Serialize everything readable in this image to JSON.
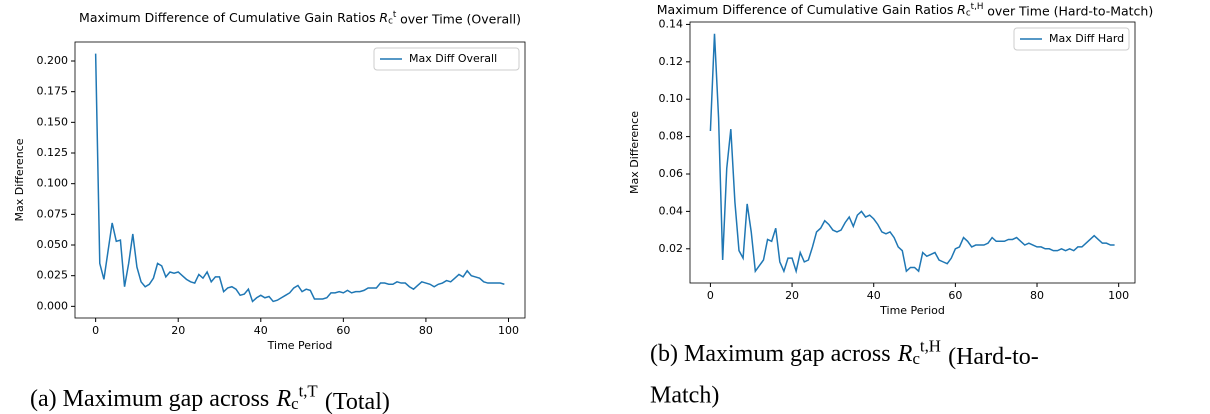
{
  "chart_data": [
    {
      "type": "line",
      "title": {
        "before": "Maximum Difference of Cumulative Gain Ratios",
        "math": {
          "base": "R",
          "sub": "c",
          "sup": "t"
        },
        "after": "over Time (Overall)"
      },
      "xlabel": "Time Period",
      "ylabel": "Max Difference",
      "x": [
        0,
        1,
        2,
        3,
        4,
        5,
        6,
        7,
        8,
        9,
        10,
        11,
        12,
        13,
        14,
        15,
        16,
        17,
        18,
        19,
        20,
        21,
        22,
        23,
        24,
        25,
        26,
        27,
        28,
        29,
        30,
        31,
        32,
        33,
        34,
        35,
        36,
        37,
        38,
        39,
        40,
        41,
        42,
        43,
        44,
        45,
        46,
        47,
        48,
        49,
        50,
        51,
        52,
        53,
        54,
        55,
        56,
        57,
        58,
        59,
        60,
        61,
        62,
        63,
        64,
        65,
        66,
        67,
        68,
        69,
        70,
        71,
        72,
        73,
        74,
        75,
        76,
        77,
        78,
        79,
        80,
        81,
        82,
        83,
        84,
        85,
        86,
        87,
        88,
        89,
        90,
        91,
        92,
        93,
        94,
        95,
        96,
        97,
        98,
        99
      ],
      "series": [
        {
          "name": "Max Diff Overall",
          "color": "#1f77b4",
          "values": [
            0.206,
            0.035,
            0.022,
            0.045,
            0.068,
            0.053,
            0.054,
            0.016,
            0.035,
            0.059,
            0.032,
            0.02,
            0.016,
            0.018,
            0.023,
            0.035,
            0.033,
            0.024,
            0.028,
            0.027,
            0.028,
            0.025,
            0.022,
            0.02,
            0.019,
            0.026,
            0.023,
            0.028,
            0.02,
            0.024,
            0.024,
            0.012,
            0.015,
            0.016,
            0.014,
            0.009,
            0.01,
            0.014,
            0.004,
            0.007,
            0.009,
            0.007,
            0.008,
            0.004,
            0.005,
            0.007,
            0.009,
            0.011,
            0.015,
            0.017,
            0.012,
            0.014,
            0.013,
            0.006,
            0.006,
            0.006,
            0.007,
            0.011,
            0.011,
            0.012,
            0.011,
            0.013,
            0.011,
            0.012,
            0.012,
            0.013,
            0.015,
            0.015,
            0.015,
            0.019,
            0.019,
            0.018,
            0.018,
            0.02,
            0.019,
            0.019,
            0.016,
            0.014,
            0.017,
            0.02,
            0.019,
            0.018,
            0.016,
            0.018,
            0.019,
            0.021,
            0.02,
            0.023,
            0.026,
            0.024,
            0.029,
            0.025,
            0.024,
            0.023,
            0.02,
            0.019,
            0.019,
            0.019,
            0.019,
            0.018
          ]
        }
      ],
      "xlim": [
        -5,
        104
      ],
      "xticks": [
        0,
        20,
        40,
        60,
        80,
        100
      ],
      "ylim": [
        -0.0095,
        0.2155
      ],
      "yticks": [
        {
          "value": 0,
          "label": "0.000"
        },
        {
          "value": 0.025,
          "label": "0.025"
        },
        {
          "value": 0.05,
          "label": "0.050"
        },
        {
          "value": 0.075,
          "label": "0.075"
        },
        {
          "value": 0.1,
          "label": "0.100"
        },
        {
          "value": 0.125,
          "label": "0.125"
        },
        {
          "value": 0.15,
          "label": "0.150"
        },
        {
          "value": 0.175,
          "label": "0.175"
        },
        {
          "value": 0.2,
          "label": "0.200"
        }
      ],
      "legend": "upper right",
      "caption": {
        "before": "(a) Maximum gap across",
        "math": {
          "base": "R",
          "sub": "c",
          "sup": "t,T"
        },
        "after_lines": [
          "(Total)"
        ]
      }
    },
    {
      "type": "line",
      "title": {
        "before": "Maximum Difference of Cumulative Gain Ratios",
        "math": {
          "base": "R",
          "sub": "c",
          "sup": "t,H"
        },
        "after": "over Time (Hard-to-Match)"
      },
      "xlabel": "Time Period",
      "ylabel": "Max Difference",
      "x": [
        0,
        1,
        2,
        3,
        4,
        5,
        6,
        7,
        8,
        9,
        10,
        11,
        12,
        13,
        14,
        15,
        16,
        17,
        18,
        19,
        20,
        21,
        22,
        23,
        24,
        25,
        26,
        27,
        28,
        29,
        30,
        31,
        32,
        33,
        34,
        35,
        36,
        37,
        38,
        39,
        40,
        41,
        42,
        43,
        44,
        45,
        46,
        47,
        48,
        49,
        50,
        51,
        52,
        53,
        54,
        55,
        56,
        57,
        58,
        59,
        60,
        61,
        62,
        63,
        64,
        65,
        66,
        67,
        68,
        69,
        70,
        71,
        72,
        73,
        74,
        75,
        76,
        77,
        78,
        79,
        80,
        81,
        82,
        83,
        84,
        85,
        86,
        87,
        88,
        89,
        90,
        91,
        92,
        93,
        94,
        95,
        96,
        97,
        98,
        99
      ],
      "series": [
        {
          "name": "Max Diff Hard",
          "color": "#1f77b4",
          "values": [
            0.083,
            0.135,
            0.09,
            0.014,
            0.063,
            0.084,
            0.045,
            0.019,
            0.015,
            0.044,
            0.029,
            0.008,
            0.011,
            0.014,
            0.025,
            0.024,
            0.031,
            0.013,
            0.008,
            0.015,
            0.015,
            0.008,
            0.018,
            0.013,
            0.014,
            0.021,
            0.029,
            0.031,
            0.035,
            0.033,
            0.03,
            0.029,
            0.03,
            0.034,
            0.037,
            0.032,
            0.038,
            0.04,
            0.037,
            0.038,
            0.036,
            0.033,
            0.029,
            0.028,
            0.029,
            0.026,
            0.021,
            0.019,
            0.008,
            0.01,
            0.01,
            0.008,
            0.018,
            0.016,
            0.017,
            0.018,
            0.014,
            0.013,
            0.012,
            0.015,
            0.02,
            0.021,
            0.026,
            0.024,
            0.021,
            0.022,
            0.022,
            0.022,
            0.023,
            0.026,
            0.024,
            0.024,
            0.024,
            0.025,
            0.025,
            0.026,
            0.024,
            0.022,
            0.023,
            0.022,
            0.021,
            0.021,
            0.02,
            0.02,
            0.019,
            0.019,
            0.02,
            0.019,
            0.02,
            0.019,
            0.021,
            0.021,
            0.023,
            0.025,
            0.027,
            0.025,
            0.023,
            0.023,
            0.022,
            0.022
          ]
        }
      ],
      "xlim": [
        -5,
        104
      ],
      "xticks": [
        0,
        20,
        40,
        60,
        80,
        100
      ],
      "ylim": [
        0.0017,
        0.1413
      ],
      "yticks": [
        {
          "value": 0.02,
          "label": "0.02"
        },
        {
          "value": 0.04,
          "label": "0.04"
        },
        {
          "value": 0.06,
          "label": "0.06"
        },
        {
          "value": 0.08,
          "label": "0.08"
        },
        {
          "value": 0.1,
          "label": "0.10"
        },
        {
          "value": 0.12,
          "label": "0.12"
        },
        {
          "value": 0.14,
          "label": "0.14"
        }
      ],
      "legend": "upper right",
      "caption": {
        "before": "(b) Maximum gap across",
        "math": {
          "base": "R",
          "sub": "c",
          "sup": "t,H"
        },
        "after_lines": [
          "(Hard-to-",
          "Match)"
        ]
      }
    }
  ]
}
